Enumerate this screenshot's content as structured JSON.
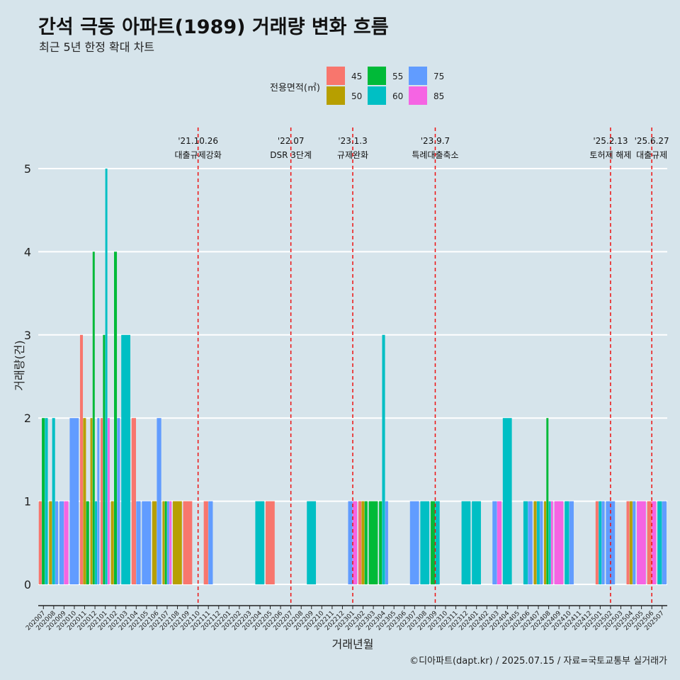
{
  "title": "간석 극동 아파트(1989) 거래량 변화 흐름",
  "subtitle": "최근 5년 한정 확대 차트",
  "caption": "©디아파트(dapt.kr) / 2025.07.15 / 자료=국토교통부 실거래가",
  "chart_data": {
    "type": "bar",
    "xlabel": "거래년월",
    "ylabel": "거래량(건)",
    "ylim": [
      0,
      5
    ],
    "yticks": [
      0,
      1,
      2,
      3,
      4,
      5
    ],
    "grid": true,
    "legend": {
      "title": "전용면적(㎡)",
      "position": "top",
      "items": [
        {
          "name": "45",
          "color": "#f8766d"
        },
        {
          "name": "50",
          "color": "#b79f00"
        },
        {
          "name": "55",
          "color": "#00ba38"
        },
        {
          "name": "60",
          "color": "#00bfc4"
        },
        {
          "name": "75",
          "color": "#619cff"
        },
        {
          "name": "85",
          "color": "#f564e3"
        }
      ]
    },
    "categories": [
      "202007",
      "202008",
      "202009",
      "202010",
      "202011",
      "202012",
      "202101",
      "202102",
      "202103",
      "202104",
      "202105",
      "202106",
      "202107",
      "202108",
      "202109",
      "202110",
      "202111",
      "202112",
      "202201",
      "202202",
      "202203",
      "202204",
      "202205",
      "202206",
      "202207",
      "202208",
      "202209",
      "202210",
      "202211",
      "202212",
      "202301",
      "202302",
      "202303",
      "202304",
      "202305",
      "202306",
      "202307",
      "202308",
      "202309",
      "202310",
      "202311",
      "202312",
      "202401",
      "202402",
      "202403",
      "202404",
      "202405",
      "202406",
      "202407",
      "202408",
      "202409",
      "202410",
      "202411",
      "202412",
      "202501",
      "202502",
      "202503",
      "202504",
      "202505",
      "202506",
      "202507"
    ],
    "data": {
      "202007": {
        "45": 1,
        "55": 2,
        "60": 2
      },
      "202008": {
        "50": 1,
        "60": 2,
        "75": 1
      },
      "202009": {
        "75": 1,
        "85": 1
      },
      "202010": {
        "75": 2
      },
      "202011": {
        "45": 3,
        "50": 2,
        "55": 1
      },
      "202012": {
        "50": 2,
        "55": 4,
        "60": 1,
        "75": 2
      },
      "202101": {
        "45": 2,
        "55": 3,
        "60": 5,
        "85": 2
      },
      "202102": {
        "50": 1,
        "55": 4,
        "75": 2
      },
      "202103": {
        "60": 3
      },
      "202104": {
        "45": 2,
        "75": 1
      },
      "202105": {
        "75": 1
      },
      "202106": {
        "50": 1,
        "75": 2
      },
      "202107": {
        "50": 1,
        "55": 1,
        "75": 1,
        "85": 1
      },
      "202108": {
        "50": 1
      },
      "202109": {
        "45": 1
      },
      "202111": {
        "45": 1,
        "75": 1
      },
      "202204": {
        "60": 1
      },
      "202205": {
        "45": 1
      },
      "202209": {
        "60": 1
      },
      "202301": {
        "75": 1,
        "85": 1
      },
      "202302": {
        "45": 1,
        "50": 1,
        "55": 1
      },
      "202303": {
        "55": 1
      },
      "202304": {
        "55": 1,
        "60": 3,
        "75": 1
      },
      "202307": {
        "75": 1
      },
      "202308": {
        "60": 1
      },
      "202309": {
        "55": 1,
        "60": 1
      },
      "202312": {
        "60": 1
      },
      "202401": {
        "60": 1
      },
      "202403": {
        "75": 1,
        "85": 1
      },
      "202404": {
        "60": 2
      },
      "202406": {
        "60": 1,
        "75": 1
      },
      "202407": {
        "50": 1,
        "60": 1,
        "75": 1
      },
      "202408": {
        "50": 1,
        "55": 2,
        "60": 1,
        "85": 1
      },
      "202409": {
        "85": 1
      },
      "202410": {
        "60": 1,
        "75": 1
      },
      "202501": {
        "45": 1,
        "60": 1,
        "75": 1
      },
      "202502": {
        "75": 1
      },
      "202504": {
        "45": 1,
        "50": 1,
        "75": 1
      },
      "202505": {
        "85": 1
      },
      "202506": {
        "45": 1,
        "85": 1
      },
      "202507": {
        "60": 1,
        "75": 1
      }
    },
    "events": [
      {
        "date": "'21.10.26",
        "label": "대출규제강화",
        "month": "202110"
      },
      {
        "date": "'22.07",
        "label": "DSR 3단계",
        "month": "202207"
      },
      {
        "date": "'23.1.3",
        "label": "규제완화",
        "month": "202301"
      },
      {
        "date": "'23.9.7",
        "label": "특례대출축소",
        "month": "202309"
      },
      {
        "date": "'25.2.13",
        "label": "토허제 해제",
        "month": "202502"
      },
      {
        "date": "'25.6.27",
        "label": "대출규제",
        "month": "202506"
      }
    ]
  }
}
